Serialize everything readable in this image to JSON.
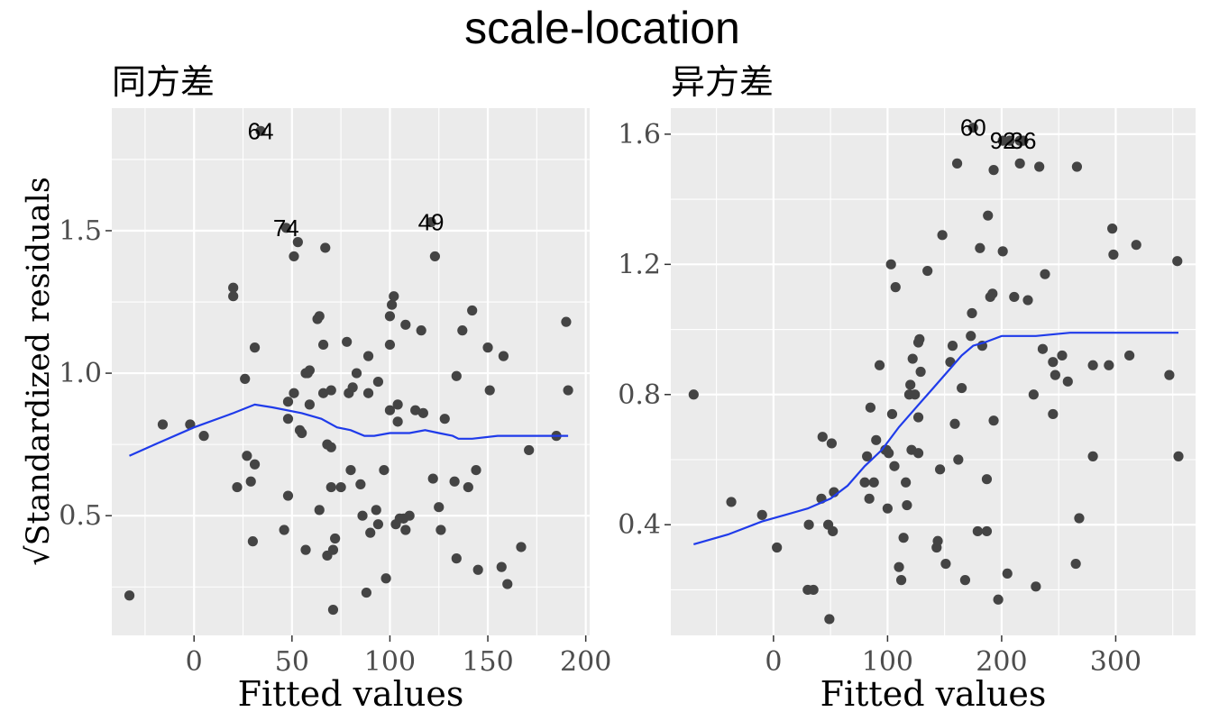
{
  "figure": {
    "title": "scale-location"
  },
  "chart_data": [
    {
      "type": "scatter",
      "title": "同方差",
      "xlabel": "Fitted values",
      "ylabel": "√Standardized residuals",
      "xlim": [
        -42,
        202
      ],
      "ylim": [
        0.08,
        1.93
      ],
      "x_ticks": [
        0,
        50,
        100,
        150,
        200
      ],
      "x_tick_labels": [
        "0",
        "50",
        "100",
        "150",
        "200"
      ],
      "y_ticks": [
        0.5,
        1.0,
        1.5
      ],
      "y_tick_labels": [
        "0.5",
        "1.0",
        "1.5"
      ],
      "grid": true,
      "points": [
        [
          -33,
          0.22
        ],
        [
          -16,
          0.82
        ],
        [
          -2,
          0.82
        ],
        [
          5,
          0.78
        ],
        [
          20,
          1.3
        ],
        [
          20,
          1.27
        ],
        [
          22,
          0.6
        ],
        [
          26,
          0.98
        ],
        [
          27,
          0.71
        ],
        [
          29,
          0.62
        ],
        [
          30,
          0.41
        ],
        [
          31,
          0.68
        ],
        [
          31,
          1.09
        ],
        [
          34,
          1.85
        ],
        [
          46,
          0.45
        ],
        [
          47,
          1.51
        ],
        [
          48,
          0.9
        ],
        [
          48,
          0.84
        ],
        [
          48,
          0.57
        ],
        [
          51,
          0.93
        ],
        [
          51,
          1.41
        ],
        [
          53,
          1.46
        ],
        [
          54,
          0.8
        ],
        [
          55,
          0.79
        ],
        [
          57,
          0.38
        ],
        [
          57,
          1.0
        ],
        [
          58,
          1.0
        ],
        [
          59,
          0.89
        ],
        [
          59,
          1.01
        ],
        [
          63,
          1.19
        ],
        [
          64,
          1.2
        ],
        [
          64,
          0.52
        ],
        [
          66,
          0.93
        ],
        [
          66,
          1.1
        ],
        [
          67,
          1.44
        ],
        [
          68,
          0.75
        ],
        [
          68,
          0.36
        ],
        [
          70,
          0.74
        ],
        [
          70,
          0.6
        ],
        [
          70,
          0.94
        ],
        [
          71,
          0.17
        ],
        [
          71,
          0.38
        ],
        [
          72,
          0.42
        ],
        [
          75,
          0.6
        ],
        [
          78,
          1.11
        ],
        [
          79,
          0.93
        ],
        [
          80,
          0.66
        ],
        [
          81,
          0.95
        ],
        [
          83,
          1.0
        ],
        [
          85,
          0.61
        ],
        [
          86,
          0.5
        ],
        [
          88,
          0.23
        ],
        [
          89,
          1.06
        ],
        [
          89,
          0.93
        ],
        [
          90,
          0.44
        ],
        [
          93,
          0.52
        ],
        [
          94,
          0.47
        ],
        [
          94,
          0.97
        ],
        [
          97,
          0.66
        ],
        [
          98,
          0.28
        ],
        [
          100,
          0.87
        ],
        [
          100,
          1.1
        ],
        [
          100,
          1.2
        ],
        [
          101,
          1.24
        ],
        [
          102,
          1.27
        ],
        [
          103,
          0.47
        ],
        [
          104,
          0.83
        ],
        [
          104,
          0.89
        ],
        [
          105,
          0.49
        ],
        [
          107,
          0.49
        ],
        [
          108,
          0.45
        ],
        [
          108,
          1.17
        ],
        [
          110,
          0.5
        ],
        [
          113,
          0.87
        ],
        [
          116,
          1.15
        ],
        [
          117,
          0.86
        ],
        [
          121,
          1.53
        ],
        [
          122,
          0.63
        ],
        [
          123,
          1.41
        ],
        [
          125,
          0.53
        ],
        [
          126,
          0.45
        ],
        [
          128,
          0.84
        ],
        [
          133,
          0.62
        ],
        [
          134,
          0.35
        ],
        [
          134,
          0.99
        ],
        [
          137,
          1.15
        ],
        [
          140,
          0.6
        ],
        [
          142,
          1.22
        ],
        [
          144,
          0.66
        ],
        [
          145,
          0.31
        ],
        [
          150,
          1.09
        ],
        [
          151,
          0.94
        ],
        [
          157,
          0.32
        ],
        [
          158,
          1.06
        ],
        [
          160,
          0.26
        ],
        [
          167,
          0.39
        ],
        [
          171,
          0.73
        ],
        [
          185,
          0.78
        ],
        [
          190,
          1.18
        ],
        [
          191,
          0.94
        ]
      ],
      "smooth": [
        [
          -33,
          0.71
        ],
        [
          -20,
          0.75
        ],
        [
          0,
          0.81
        ],
        [
          20,
          0.86
        ],
        [
          31,
          0.89
        ],
        [
          40,
          0.88
        ],
        [
          55,
          0.86
        ],
        [
          65,
          0.84
        ],
        [
          73,
          0.81
        ],
        [
          80,
          0.8
        ],
        [
          87,
          0.78
        ],
        [
          92,
          0.78
        ],
        [
          100,
          0.79
        ],
        [
          110,
          0.79
        ],
        [
          118,
          0.8
        ],
        [
          125,
          0.79
        ],
        [
          132,
          0.78
        ],
        [
          135,
          0.77
        ],
        [
          142,
          0.77
        ],
        [
          155,
          0.78
        ],
        [
          170,
          0.78
        ],
        [
          191,
          0.78
        ]
      ],
      "annotations": [
        {
          "label": "64",
          "x": 34,
          "y": 1.85
        },
        {
          "label": "74",
          "x": 47,
          "y": 1.51
        },
        {
          "label": "49",
          "x": 121,
          "y": 1.53
        }
      ]
    },
    {
      "type": "scatter",
      "title": "异方差",
      "xlabel": "Fitted values",
      "ylabel": "",
      "xlim": [
        -90,
        370
      ],
      "ylim": [
        0.06,
        1.68
      ],
      "x_ticks": [
        0,
        100,
        200,
        300
      ],
      "x_tick_labels": [
        "0",
        "100",
        "200",
        "300"
      ],
      "y_ticks": [
        0.4,
        0.8,
        1.2,
        1.6
      ],
      "y_tick_labels": [
        "0.4",
        "0.8",
        "1.2",
        "1.6"
      ],
      "grid": true,
      "points": [
        [
          -70,
          0.8
        ],
        [
          -37,
          0.47
        ],
        [
          -10,
          0.43
        ],
        [
          3,
          0.33
        ],
        [
          30,
          0.2
        ],
        [
          31,
          0.4
        ],
        [
          35,
          0.2
        ],
        [
          42,
          0.48
        ],
        [
          43,
          0.67
        ],
        [
          48,
          0.4
        ],
        [
          49,
          0.11
        ],
        [
          51,
          0.65
        ],
        [
          52,
          0.38
        ],
        [
          53,
          0.5
        ],
        [
          80,
          0.53
        ],
        [
          82,
          0.61
        ],
        [
          84,
          0.48
        ],
        [
          85,
          0.76
        ],
        [
          88,
          0.53
        ],
        [
          90,
          0.66
        ],
        [
          93,
          0.89
        ],
        [
          98,
          0.63
        ],
        [
          99,
          0.63
        ],
        [
          100,
          0.45
        ],
        [
          101,
          0.62
        ],
        [
          103,
          1.2
        ],
        [
          104,
          0.74
        ],
        [
          106,
          0.58
        ],
        [
          107,
          1.13
        ],
        [
          110,
          0.27
        ],
        [
          112,
          0.23
        ],
        [
          114,
          0.36
        ],
        [
          116,
          0.53
        ],
        [
          117,
          0.46
        ],
        [
          119,
          0.8
        ],
        [
          120,
          0.83
        ],
        [
          121,
          0.63
        ],
        [
          122,
          0.91
        ],
        [
          124,
          0.8
        ],
        [
          127,
          0.73
        ],
        [
          127,
          0.62
        ],
        [
          127,
          0.96
        ],
        [
          128,
          0.97
        ],
        [
          129,
          0.87
        ],
        [
          135,
          1.18
        ],
        [
          143,
          0.33
        ],
        [
          144,
          0.35
        ],
        [
          146,
          0.57
        ],
        [
          148,
          1.29
        ],
        [
          151,
          0.28
        ],
        [
          155,
          0.9
        ],
        [
          157,
          0.95
        ],
        [
          159,
          0.71
        ],
        [
          161,
          1.51
        ],
        [
          162,
          0.6
        ],
        [
          165,
          0.82
        ],
        [
          168,
          0.23
        ],
        [
          173,
          0.98
        ],
        [
          174,
          1.05
        ],
        [
          175,
          1.62
        ],
        [
          179,
          0.38
        ],
        [
          181,
          1.25
        ],
        [
          183,
          0.95
        ],
        [
          187,
          0.38
        ],
        [
          187,
          0.54
        ],
        [
          188,
          1.35
        ],
        [
          190,
          1.1
        ],
        [
          192,
          1.11
        ],
        [
          193,
          0.72
        ],
        [
          193,
          1.49
        ],
        [
          197,
          0.17
        ],
        [
          201,
          1.24
        ],
        [
          201,
          1.58
        ],
        [
          205,
          0.25
        ],
        [
          207,
          1.58
        ],
        [
          211,
          1.1
        ],
        [
          216,
          1.51
        ],
        [
          216,
          1.58
        ],
        [
          219,
          1.58
        ],
        [
          223,
          1.09
        ],
        [
          228,
          0.8
        ],
        [
          230,
          0.21
        ],
        [
          233,
          1.5
        ],
        [
          236,
          0.94
        ],
        [
          238,
          1.17
        ],
        [
          245,
          0.9
        ],
        [
          245,
          0.74
        ],
        [
          247,
          0.86
        ],
        [
          253,
          0.92
        ],
        [
          258,
          0.84
        ],
        [
          265,
          0.28
        ],
        [
          266,
          1.5
        ],
        [
          268,
          0.42
        ],
        [
          280,
          0.61
        ],
        [
          280,
          0.89
        ],
        [
          294,
          0.89
        ],
        [
          297,
          1.31
        ],
        [
          298,
          1.23
        ],
        [
          312,
          0.92
        ],
        [
          318,
          1.26
        ],
        [
          347,
          0.86
        ],
        [
          354,
          1.21
        ],
        [
          355,
          0.61
        ]
      ],
      "smooth": [
        [
          -70,
          0.34
        ],
        [
          -40,
          0.37
        ],
        [
          -10,
          0.41
        ],
        [
          10,
          0.43
        ],
        [
          30,
          0.45
        ],
        [
          50,
          0.48
        ],
        [
          65,
          0.52
        ],
        [
          80,
          0.58
        ],
        [
          95,
          0.63
        ],
        [
          110,
          0.7
        ],
        [
          125,
          0.76
        ],
        [
          140,
          0.82
        ],
        [
          155,
          0.88
        ],
        [
          165,
          0.92
        ],
        [
          175,
          0.95
        ],
        [
          185,
          0.96
        ],
        [
          200,
          0.98
        ],
        [
          210,
          0.98
        ],
        [
          230,
          0.98
        ],
        [
          260,
          0.99
        ],
        [
          290,
          0.99
        ],
        [
          330,
          0.99
        ],
        [
          355,
          0.99
        ]
      ],
      "annotations": [
        {
          "label": "60",
          "x": 175,
          "y": 1.62
        },
        {
          "label": "92",
          "x": 201,
          "y": 1.58
        },
        {
          "label": "36",
          "x": 219,
          "y": 1.58
        }
      ]
    }
  ]
}
